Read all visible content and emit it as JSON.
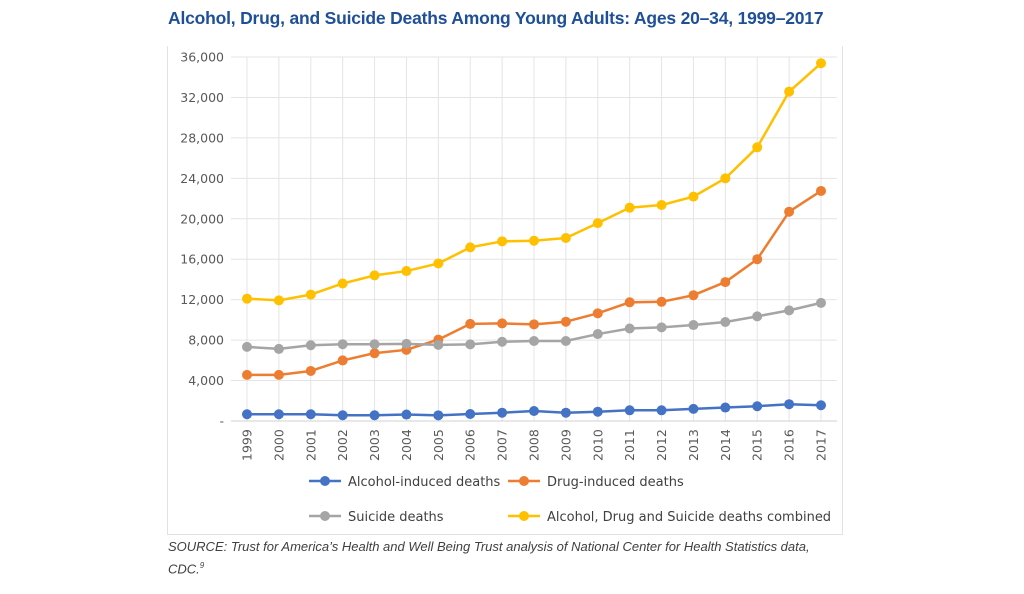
{
  "chart_data": {
    "type": "line",
    "title": "Alcohol, Drug, and Suicide Deaths Among Young Adults: Ages 20–34, 1999–2017",
    "xlabel": "",
    "ylabel": "",
    "ylim": [
      0,
      36000
    ],
    "yticks": [
      0,
      4000,
      8000,
      12000,
      16000,
      20000,
      24000,
      28000,
      32000,
      36000
    ],
    "ytick_labels": [
      "-",
      "4,000",
      "8,000",
      "12,000",
      "16,000",
      "20,000",
      "24,000",
      "28,000",
      "32,000",
      "36,000"
    ],
    "grid": true,
    "legend_position": "bottom",
    "categories": [
      "1999",
      "2000",
      "2001",
      "2002",
      "2003",
      "2004",
      "2005",
      "2006",
      "2007",
      "2008",
      "2009",
      "2010",
      "2011",
      "2012",
      "2013",
      "2014",
      "2015",
      "2016",
      "2017"
    ],
    "series": [
      {
        "name": "Alcohol-induced deaths",
        "color": "#4472c4",
        "values": [
          670,
          670,
          670,
          570,
          570,
          640,
          560,
          690,
          820,
          990,
          820,
          920,
          1060,
          1060,
          1200,
          1330,
          1460,
          1660,
          1560
        ]
      },
      {
        "name": "Drug-induced deaths",
        "color": "#ed7d31",
        "values": [
          4560,
          4560,
          4950,
          5990,
          6710,
          7040,
          8050,
          9600,
          9650,
          9560,
          9820,
          10650,
          11740,
          11790,
          12440,
          13740,
          16000,
          20700,
          22750
        ]
      },
      {
        "name": "Suicide deaths",
        "color": "#a5a5a5",
        "values": [
          7330,
          7130,
          7490,
          7590,
          7590,
          7630,
          7530,
          7580,
          7840,
          7910,
          7910,
          8600,
          9150,
          9260,
          9490,
          9790,
          10350,
          10940,
          11680
        ]
      },
      {
        "name": "Alcohol, Drug and Suicide deaths combined",
        "color": "#ffc000",
        "values": [
          12100,
          11930,
          12500,
          13600,
          14400,
          14830,
          15580,
          17170,
          17770,
          17830,
          18100,
          19570,
          21100,
          21360,
          22190,
          24000,
          27070,
          32570,
          35380
        ]
      }
    ]
  },
  "source": {
    "text": "SOURCE: Trust for America’s Health and Well Being Trust analysis of National Center for Health Statistics data, CDC.",
    "footnote": "9"
  }
}
